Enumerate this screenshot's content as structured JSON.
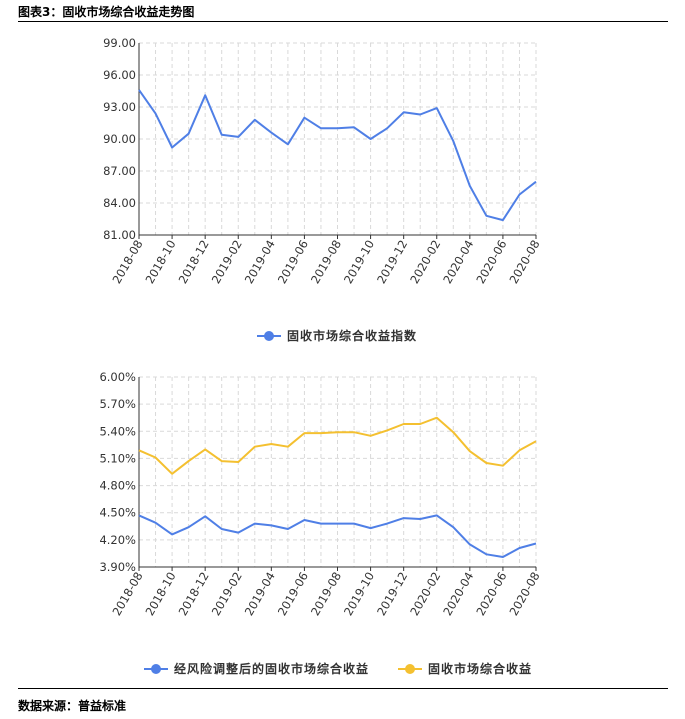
{
  "header": {
    "title": "图表3：固收市场综合收益走势图"
  },
  "footer": {
    "source": "数据来源：普益标准"
  },
  "colors": {
    "blue": "#4f7fe6",
    "yellow": "#f4c030",
    "grid": "#d9d9d9"
  },
  "chart_data": [
    {
      "type": "line",
      "x": [
        "2018-08",
        "2018-09",
        "2018-10",
        "2018-11",
        "2018-12",
        "2019-01",
        "2019-02",
        "2019-03",
        "2019-04",
        "2019-05",
        "2019-06",
        "2019-07",
        "2019-08",
        "2019-09",
        "2019-10",
        "2019-11",
        "2019-12",
        "2020-01",
        "2020-02",
        "2020-03",
        "2020-04",
        "2020-05",
        "2020-06",
        "2020-07",
        "2020-08"
      ],
      "xticks": [
        "2018-08",
        "2018-10",
        "2018-12",
        "2019-02",
        "2019-04",
        "2019-06",
        "2019-08",
        "2019-10",
        "2019-12",
        "2020-02",
        "2020-04",
        "2020-06",
        "2020-08"
      ],
      "yticks": [
        "99.00",
        "96.00",
        "93.00",
        "90.00",
        "87.00",
        "84.00",
        "81.00"
      ],
      "ylim": [
        81,
        99
      ],
      "series": [
        {
          "name": "固收市场综合收益指数",
          "color": "#4f7fe6",
          "values": [
            94.6,
            92.4,
            89.2,
            90.5,
            94.1,
            90.4,
            90.2,
            91.8,
            90.6,
            89.5,
            92.0,
            91.0,
            91.0,
            91.1,
            90.0,
            91.0,
            92.5,
            92.3,
            92.9,
            89.8,
            85.6,
            82.8,
            82.4,
            84.8,
            86.0
          ]
        }
      ],
      "legend": [
        "固收市场综合收益指数"
      ],
      "legend_position": "bottom-center"
    },
    {
      "type": "line",
      "x": [
        "2018-08",
        "2018-09",
        "2018-10",
        "2018-11",
        "2018-12",
        "2019-01",
        "2019-02",
        "2019-03",
        "2019-04",
        "2019-05",
        "2019-06",
        "2019-07",
        "2019-08",
        "2019-09",
        "2019-10",
        "2019-11",
        "2019-12",
        "2020-01",
        "2020-02",
        "2020-03",
        "2020-04",
        "2020-05",
        "2020-06",
        "2020-07",
        "2020-08"
      ],
      "xticks": [
        "2018-08",
        "2018-10",
        "2018-12",
        "2019-02",
        "2019-04",
        "2019-06",
        "2019-08",
        "2019-10",
        "2019-12",
        "2020-02",
        "2020-04",
        "2020-06",
        "2020-08"
      ],
      "yticks": [
        "6.00%",
        "5.70%",
        "5.40%",
        "5.10%",
        "4.80%",
        "4.50%",
        "4.20%",
        "3.90%"
      ],
      "ylim": [
        3.9,
        6.0
      ],
      "series": [
        {
          "name": "经风险调整后的固收市场综合收益",
          "color": "#4f7fe6",
          "values": [
            4.47,
            4.39,
            4.26,
            4.34,
            4.46,
            4.32,
            4.28,
            4.38,
            4.36,
            4.32,
            4.42,
            4.38,
            4.38,
            4.38,
            4.33,
            4.38,
            4.44,
            4.43,
            4.47,
            4.34,
            4.15,
            4.04,
            4.01,
            4.11,
            4.16
          ]
        },
        {
          "name": "固收市场综合收益",
          "color": "#f4c030",
          "values": [
            5.19,
            5.11,
            4.93,
            5.07,
            5.2,
            5.07,
            5.06,
            5.23,
            5.26,
            5.23,
            5.38,
            5.38,
            5.39,
            5.39,
            5.35,
            5.41,
            5.48,
            5.48,
            5.55,
            5.39,
            5.18,
            5.05,
            5.02,
            5.19,
            5.29
          ]
        }
      ],
      "legend": [
        "经风险调整后的固收市场综合收益",
        "固收市场综合收益"
      ],
      "legend_position": "bottom-center"
    }
  ]
}
